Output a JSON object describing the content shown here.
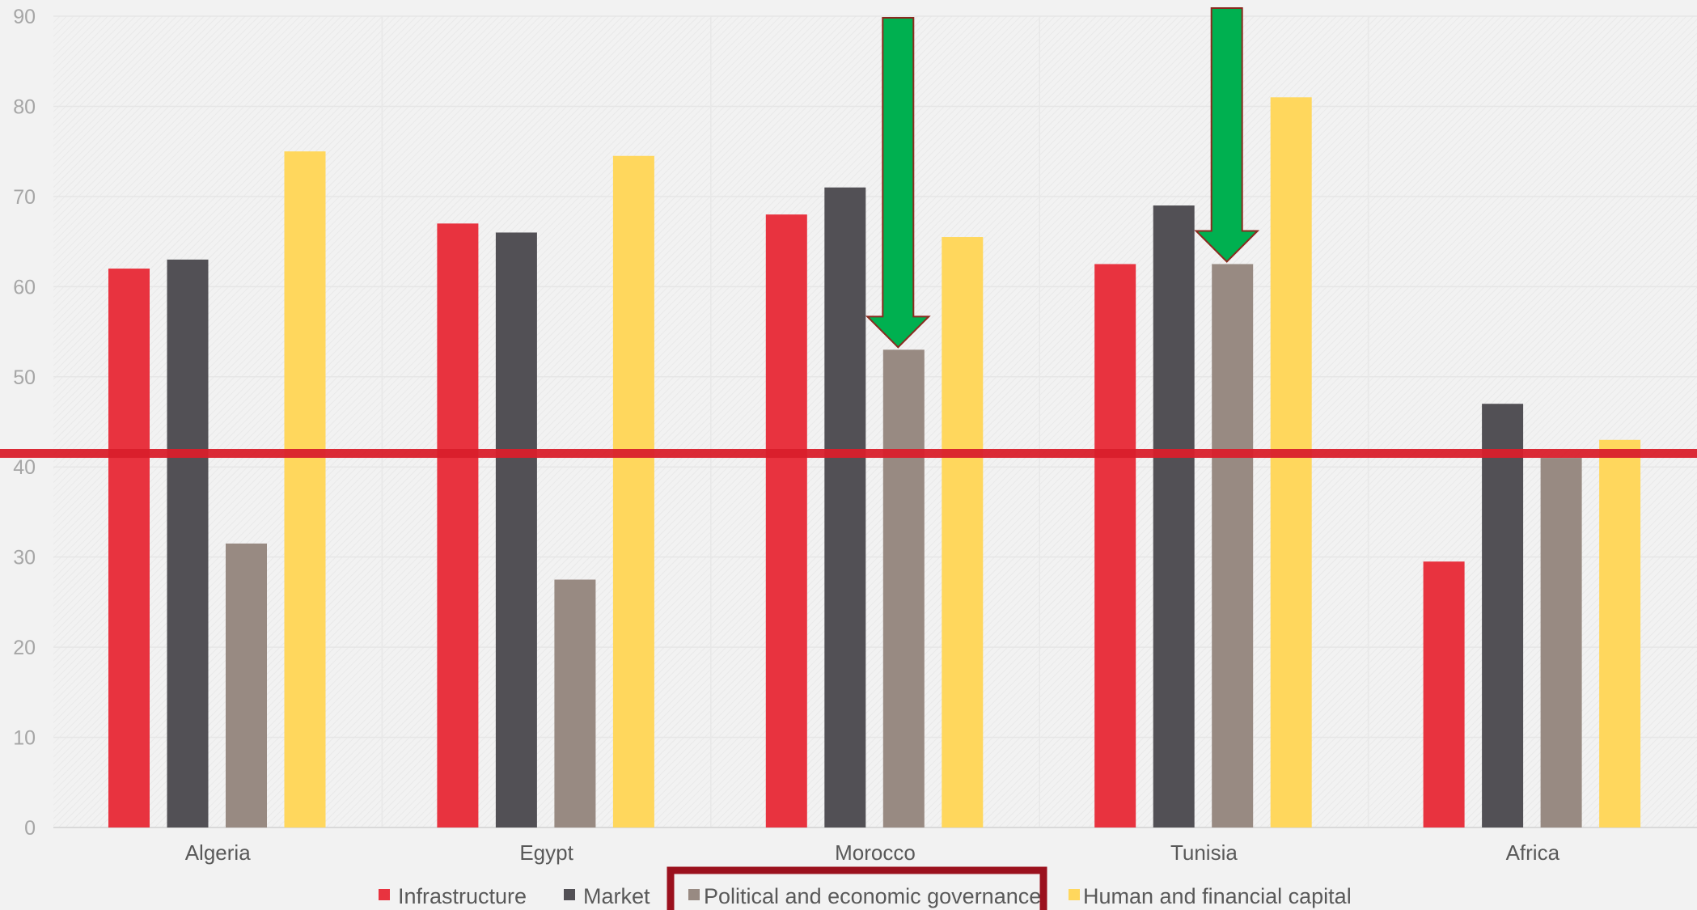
{
  "chart_data": {
    "type": "bar",
    "categories": [
      "Algeria",
      "Egypt",
      "Morocco",
      "Tunisia",
      "Africa"
    ],
    "series": [
      {
        "name": "Infrastructure",
        "values": [
          62,
          67,
          68,
          62.5,
          29.5
        ]
      },
      {
        "name": "Market",
        "values": [
          63,
          66,
          71,
          69,
          47
        ]
      },
      {
        "name": "Political and economic governance",
        "values": [
          31.5,
          27.5,
          53,
          62.5,
          41
        ]
      },
      {
        "name": "Human and financial capital",
        "values": [
          75,
          74.5,
          65.5,
          81,
          43
        ]
      }
    ],
    "colors": [
      "#e8333f",
      "#525055",
      "#988a82",
      "#ffd75d"
    ],
    "ylim": [
      0,
      90
    ],
    "yticks": [
      0,
      10,
      20,
      30,
      40,
      50,
      60,
      70,
      80,
      90
    ],
    "title": "",
    "xlabel": "",
    "ylabel": "",
    "grid": true,
    "legend_position": "bottom",
    "annotations": {
      "reference_line": {
        "value": 41.5,
        "color": "#d91f2b"
      },
      "arrows": [
        {
          "category": "Morocco",
          "series": "Political and economic governance",
          "color": "#00b050"
        },
        {
          "category": "Tunisia",
          "series": "Political and economic governance",
          "color": "#00b050"
        }
      ],
      "highlighted_legend": "Political and economic governance",
      "highlight_color": "#9b111e"
    }
  }
}
